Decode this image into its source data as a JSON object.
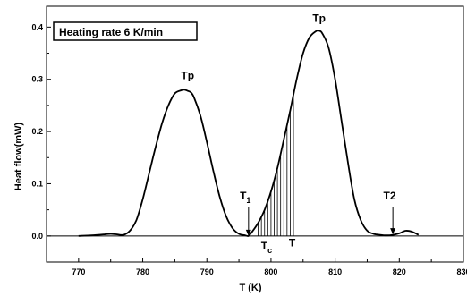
{
  "chart_data": {
    "type": "line",
    "title": "",
    "legend_box": "Heating rate 6 K/min",
    "xlabel": "T (K)",
    "ylabel": "Heat flow(mW)",
    "xlim": [
      765,
      830
    ],
    "ylim": [
      -0.05,
      0.44
    ],
    "xticks": [
      770,
      780,
      790,
      800,
      810,
      820,
      830
    ],
    "yticks": [
      0.0,
      0.1,
      0.2,
      0.3,
      0.4
    ],
    "ytick_labels": [
      "0.0",
      "0.1",
      "0.2",
      "0.3",
      "0.4"
    ],
    "grid": false,
    "series": [
      {
        "color": "#000000",
        "x": [
          770,
          772,
          774,
          775,
          776,
          777,
          778,
          779,
          780,
          781,
          782,
          783,
          784,
          785,
          786,
          786.5,
          787,
          787.5,
          788,
          789,
          790,
          791,
          792,
          793,
          794,
          795,
          796,
          796.5,
          797,
          798,
          799,
          800,
          801,
          802,
          803,
          804,
          805,
          806,
          807,
          807.5,
          808,
          809,
          810,
          811,
          812,
          813,
          814,
          815,
          816,
          817,
          818,
          819,
          820,
          821,
          822,
          823
        ],
        "y": [
          0.0,
          0.001,
          0.003,
          0.004,
          0.003,
          0.002,
          0.01,
          0.03,
          0.07,
          0.12,
          0.17,
          0.215,
          0.25,
          0.273,
          0.279,
          0.28,
          0.278,
          0.275,
          0.265,
          0.23,
          0.18,
          0.125,
          0.075,
          0.038,
          0.015,
          0.004,
          0.001,
          0.0,
          0.007,
          0.025,
          0.05,
          0.085,
          0.13,
          0.185,
          0.24,
          0.3,
          0.35,
          0.38,
          0.392,
          0.393,
          0.388,
          0.36,
          0.3,
          0.22,
          0.14,
          0.07,
          0.03,
          0.01,
          0.004,
          0.002,
          0.001,
          0.002,
          0.005,
          0.01,
          0.008,
          0.002
        ]
      }
    ],
    "baseline_y": 0.0,
    "hatch_x": [
      798,
      798.5,
      799,
      799.5,
      800,
      800.5,
      801,
      801.5,
      802,
      802.5,
      803,
      803.5
    ],
    "annotations": [
      {
        "text": "Tp",
        "x": 787,
        "y": 0.3
      },
      {
        "text": "Tp",
        "x": 807.5,
        "y": 0.41
      },
      {
        "text": "T",
        "sub": "1",
        "x": 796,
        "y": 0.07
      },
      {
        "text": "T2",
        "x": 818.5,
        "y": 0.07
      },
      {
        "text": "T",
        "sub": "c",
        "x": 799.3,
        "y": -0.026
      },
      {
        "text": "T",
        "x": 803.3,
        "y": -0.02
      }
    ],
    "arrows": [
      {
        "x": 796.5,
        "y_from": 0.055,
        "y_to": 0.0
      },
      {
        "x": 819,
        "y_from": 0.055,
        "y_to": 0.003
      }
    ]
  }
}
